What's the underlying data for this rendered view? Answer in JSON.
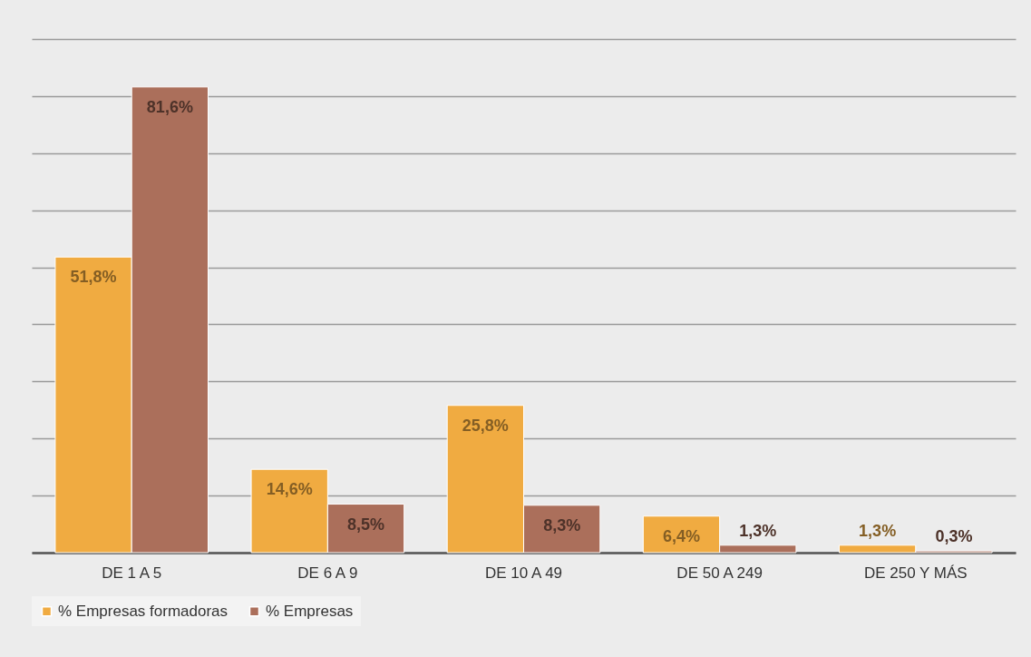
{
  "chart_data": {
    "type": "bar",
    "categories": [
      "DE 1 A 5",
      "DE 6 A 9",
      "DE 10 A 49",
      "DE 50 A 249",
      "DE 250 Y MÁS"
    ],
    "series": [
      {
        "name": "% Empresas formadoras",
        "color": "#f0ab41",
        "values": [
          51.8,
          14.6,
          25.8,
          6.4,
          1.3
        ],
        "value_labels": [
          "51,8%",
          "14,6%",
          "25,8%",
          "6,4%",
          "1,3%"
        ]
      },
      {
        "name": "% Empresas",
        "color": "#ab6f5b",
        "values": [
          81.6,
          8.5,
          8.3,
          1.3,
          0.3
        ],
        "value_labels": [
          "81,6%",
          "8,5%",
          "8,3%",
          "1,3%",
          "0,3%"
        ]
      }
    ],
    "ylim": [
      0,
      90
    ],
    "yticks": [
      {
        "value": 0,
        "label": null
      },
      {
        "value": 10,
        "label": null
      },
      {
        "value": 20,
        "label": null
      },
      {
        "value": 30,
        "label": null
      },
      {
        "value": 40,
        "label": null
      },
      {
        "value": 50,
        "label": null
      },
      {
        "value": 60,
        "label": null
      },
      {
        "value": 70,
        "label": null
      },
      {
        "value": 80,
        "label": null
      },
      {
        "value": 90,
        "label": null
      }
    ],
    "grid": "y",
    "tick_labels": "x",
    "legend": "bottom"
  }
}
